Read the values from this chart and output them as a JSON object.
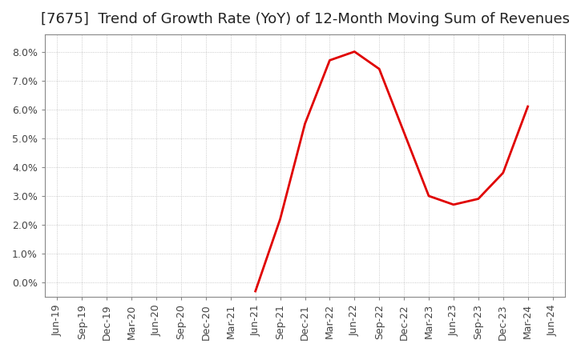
{
  "title": "[7675]  Trend of Growth Rate (YoY) of 12-Month Moving Sum of Revenues",
  "title_fontsize": 13,
  "line_color": "#e00000",
  "line_width": 2.0,
  "background_color": "#ffffff",
  "grid_color": "#bbbbbb",
  "ylim": [
    -0.005,
    0.086
  ],
  "yticks": [
    0.0,
    0.01,
    0.02,
    0.03,
    0.04,
    0.05,
    0.06,
    0.07,
    0.08
  ],
  "ytick_labels": [
    "0.0%",
    "1.0%",
    "2.0%",
    "3.0%",
    "4.0%",
    "5.0%",
    "6.0%",
    "7.0%",
    "8.0%"
  ],
  "x_labels": [
    "Jun-19",
    "Sep-19",
    "Dec-19",
    "Mar-20",
    "Jun-20",
    "Sep-20",
    "Dec-20",
    "Mar-21",
    "Jun-21",
    "Sep-21",
    "Dec-21",
    "Mar-22",
    "Jun-22",
    "Sep-22",
    "Dec-22",
    "Mar-23",
    "Jun-23",
    "Sep-23",
    "Dec-23",
    "Mar-24",
    "Jun-24"
  ],
  "y_values": [
    null,
    null,
    null,
    null,
    null,
    null,
    null,
    null,
    -0.003,
    0.022,
    0.055,
    0.077,
    0.08,
    0.074,
    0.052,
    0.03,
    0.027,
    0.029,
    0.038,
    0.061,
    null
  ],
  "tick_label_fontsize": 9,
  "tick_color": "#444444",
  "spine_color": "#888888",
  "figsize": [
    7.2,
    4.4
  ],
  "dpi": 100
}
